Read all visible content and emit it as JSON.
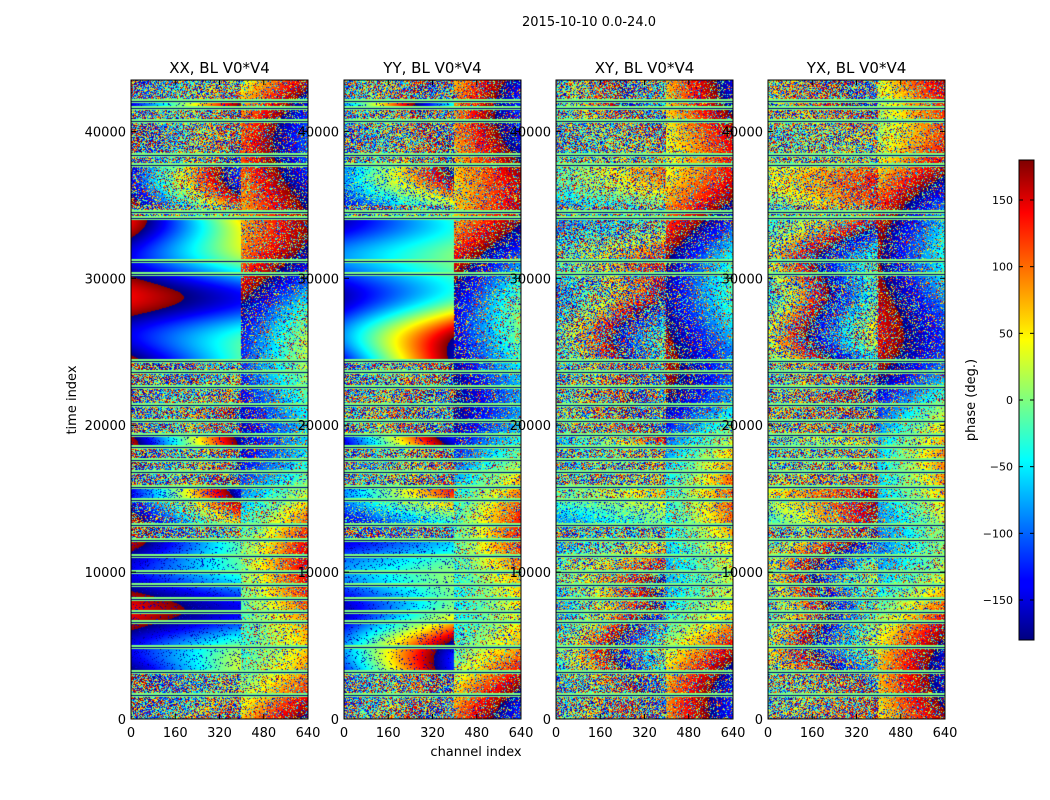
{
  "figure": {
    "suptitle": "2015-10-10 0.0-24.0"
  },
  "chart_data": {
    "type": "heatmap",
    "title": "2015-10-10 0.0-24.0",
    "xlabel": "channel index",
    "ylabel": "time index",
    "xlim": [
      0,
      640
    ],
    "ylim": [
      0,
      43500
    ],
    "x_ticks": [
      "0",
      "160",
      "320",
      "480",
      "640"
    ],
    "y_ticks": [
      "0",
      "10000",
      "20000",
      "30000",
      "40000"
    ],
    "panels": [
      {
        "title": "XX, BL V0*V4"
      },
      {
        "title": "YY, BL V0*V4"
      },
      {
        "title": "XY, BL V0*V4"
      },
      {
        "title": "YX, BL V0*V4"
      }
    ],
    "colorbar": {
      "label": "phase (deg.)",
      "range": [
        -180,
        180
      ],
      "colormap": "jet",
      "ticks": [
        "150",
        "100",
        "50",
        "0",
        "−50",
        "−100",
        "−150"
      ]
    },
    "gap_rows_time_index": [
      1600,
      3200,
      4900,
      6600,
      7300,
      8200,
      9100,
      10000,
      11100,
      12200,
      13200,
      14900,
      15800,
      16800,
      17600,
      18500,
      19300,
      20300,
      21400,
      22600,
      23600,
      24400,
      30300,
      31200,
      34100,
      34500,
      37700,
      38400,
      40700,
      41600,
      42100
    ]
  },
  "colors": {
    "jet_dark_blue": "#00007f",
    "jet_blue": "#0000ff",
    "jet_cyan": "#00ffff",
    "jet_green": "#7fff7f",
    "jet_yellow": "#ffff00",
    "jet_red": "#ff0000",
    "jet_dark_red": "#7f0000"
  }
}
